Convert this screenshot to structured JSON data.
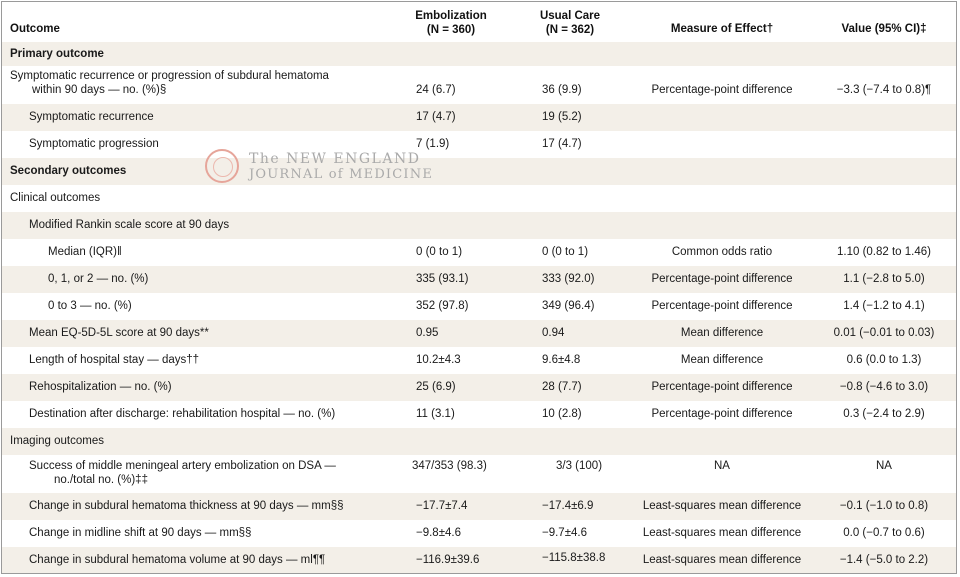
{
  "header": {
    "outcome": "Outcome",
    "emb_l1": "Embolization",
    "emb_l2": "(N = 360)",
    "uc_l1": "Usual Care",
    "uc_l2": "(N = 362)",
    "measure": "Measure of Effect†",
    "value": "Value (95% CI)‡"
  },
  "rows": [
    {
      "label": "Primary outcome"
    },
    {
      "label1": "Symptomatic recurrence or progression of subdural hematoma",
      "label2": "within 90 days — no. (%)§",
      "emb": "24 (6.7)",
      "uc": "36 (9.9)",
      "measure": "Percentage-point difference",
      "value": "−3.3 (−7.4 to 0.8)¶"
    },
    {
      "label": "Symptomatic recurrence",
      "emb": "17 (4.7)",
      "uc": "19 (5.2)"
    },
    {
      "label": "Symptomatic progression",
      "emb": "7 (1.9)",
      "uc": "17 (4.7)"
    },
    {
      "label": "Secondary outcomes"
    },
    {
      "label": "Clinical outcomes"
    },
    {
      "label": "Modified Rankin scale score at 90 days"
    },
    {
      "label": "Median (IQR)‖",
      "emb": "0 (0 to 1)",
      "uc": "0 (0 to 1)",
      "measure": "Common odds ratio",
      "value": "1.10 (0.82 to 1.46)"
    },
    {
      "label": "0, 1, or 2 — no. (%)",
      "emb": "335 (93.1)",
      "uc": "333 (92.0)",
      "measure": "Percentage-point difference",
      "value": "1.1 (−2.8 to 5.0)"
    },
    {
      "label": "0 to 3 — no. (%)",
      "emb": "352 (97.8)",
      "uc": "349 (96.4)",
      "measure": "Percentage-point difference",
      "value": "1.4 (−1.2 to 4.1)"
    },
    {
      "label": "Mean EQ-5D-5L score at 90 days**",
      "emb": "0.95",
      "uc": "0.94",
      "measure": "Mean difference",
      "value": "0.01 (−0.01 to 0.03)"
    },
    {
      "label": "Length of hospital stay — days††",
      "emb": "10.2±4.3",
      "uc": "9.6±4.8",
      "measure": "Mean difference",
      "value": "0.6 (0.0 to 1.3)"
    },
    {
      "label": "Rehospitalization — no. (%)",
      "emb": "25 (6.9)",
      "uc": "28 (7.7)",
      "measure": "Percentage-point difference",
      "value": "−0.8 (−4.6 to 3.0)"
    },
    {
      "label": "Destination after discharge: rehabilitation hospital — no. (%)",
      "emb": "11 (3.1)",
      "uc": "10 (2.8)",
      "measure": "Percentage-point difference",
      "value": "0.3 (−2.4 to 2.9)"
    },
    {
      "label": "Imaging outcomes"
    },
    {
      "label1": "Success of middle meningeal artery embolization on DSA —",
      "label2": "no./total no. (%)‡‡",
      "emb": "347/353 (98.3)",
      "uc": "3/3 (100)",
      "measure": "NA",
      "value": "NA"
    },
    {
      "label": "Change in subdural hematoma thickness at 90 days — mm§§",
      "emb": "−17.7±7.4",
      "uc": "−17.4±6.9",
      "measure": "Least-squares mean difference",
      "value": "−0.1 (−1.0 to 0.8)"
    },
    {
      "label": "Change in midline shift at 90 days — mm§§",
      "emb": "−9.8±4.6",
      "uc": "−9.7±4.6",
      "measure": "Least-squares mean difference",
      "value": "0.0 (−0.7 to 0.6)"
    },
    {
      "label": "Change in subdural hematoma volume at 90 days — ml¶¶",
      "emb": "−116.9±39.6",
      "uc": "−115.8±38.8",
      "measure": "Least-squares mean difference",
      "value": "−1.4 (−5.0 to 2.2)"
    }
  ],
  "watermark": {
    "line1": "The NEW ENGLAND",
    "line2": "JOURNAL of MEDICINE"
  },
  "colors": {
    "shade": "#f3efe8",
    "seal": "#e6a59a",
    "watermark_text": "#aaaaaa"
  }
}
